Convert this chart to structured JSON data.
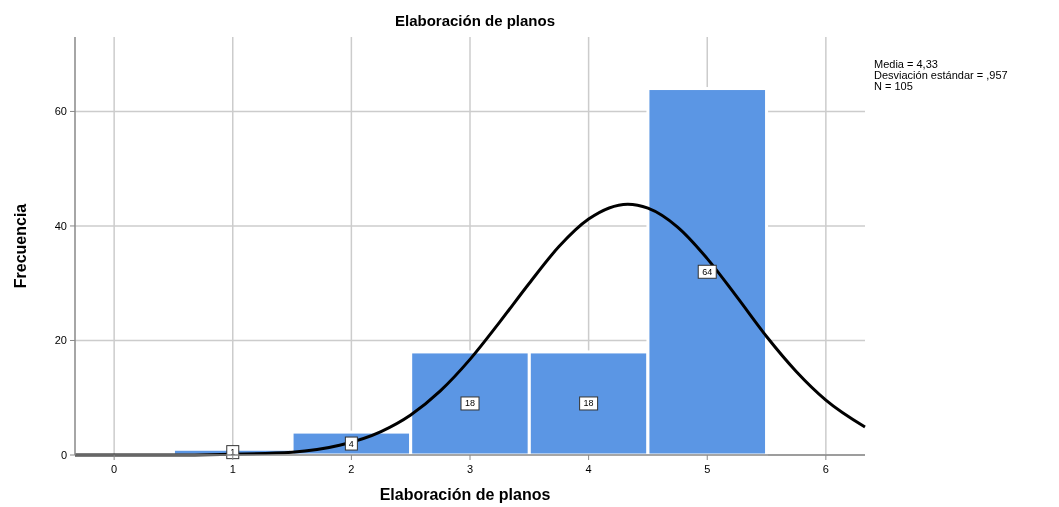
{
  "chart_data": {
    "type": "histogram",
    "title": "Elaboración de planos",
    "xlabel": "Elaboración de planos",
    "ylabel": "Frecuencia",
    "bins": [
      0.5,
      1.5,
      2.5,
      3.5,
      4.5,
      5.5
    ],
    "values": [
      1,
      4,
      18,
      18,
      64
    ],
    "color": "#5b96e4",
    "value_labels": [
      "1",
      "4",
      "18",
      "18",
      "64"
    ],
    "series": [
      {
        "type": "line",
        "color": "#000000",
        "x": [
          -0.33,
          0,
          0.5,
          0.9,
          1.5,
          1.9,
          2.25,
          2.5,
          2.75,
          3,
          3.25,
          3.5,
          3.75,
          4,
          4.33,
          4.5,
          4.75,
          5,
          5.25,
          5.5,
          5.75,
          6,
          6.33
        ],
        "values": [
          0,
          0,
          0,
          0.1,
          0.5,
          1.7,
          4.1,
          7,
          11.2,
          16.7,
          23.2,
          30,
          36.4,
          41.2,
          43.8,
          43.1,
          39.8,
          34.3,
          27.6,
          20.7,
          14.6,
          9.6,
          4.9
        ]
      }
    ],
    "xlim": [
      -0.33,
      6.33
    ],
    "xticks": [
      0,
      1,
      2,
      3,
      4,
      5,
      6
    ],
    "ylim": [
      0,
      73
    ],
    "yticks": [
      0,
      20,
      40,
      60
    ],
    "grid": true,
    "annotations": [
      "Media = 4,33",
      "Desviación estándar = ,957",
      "N = 105"
    ]
  }
}
